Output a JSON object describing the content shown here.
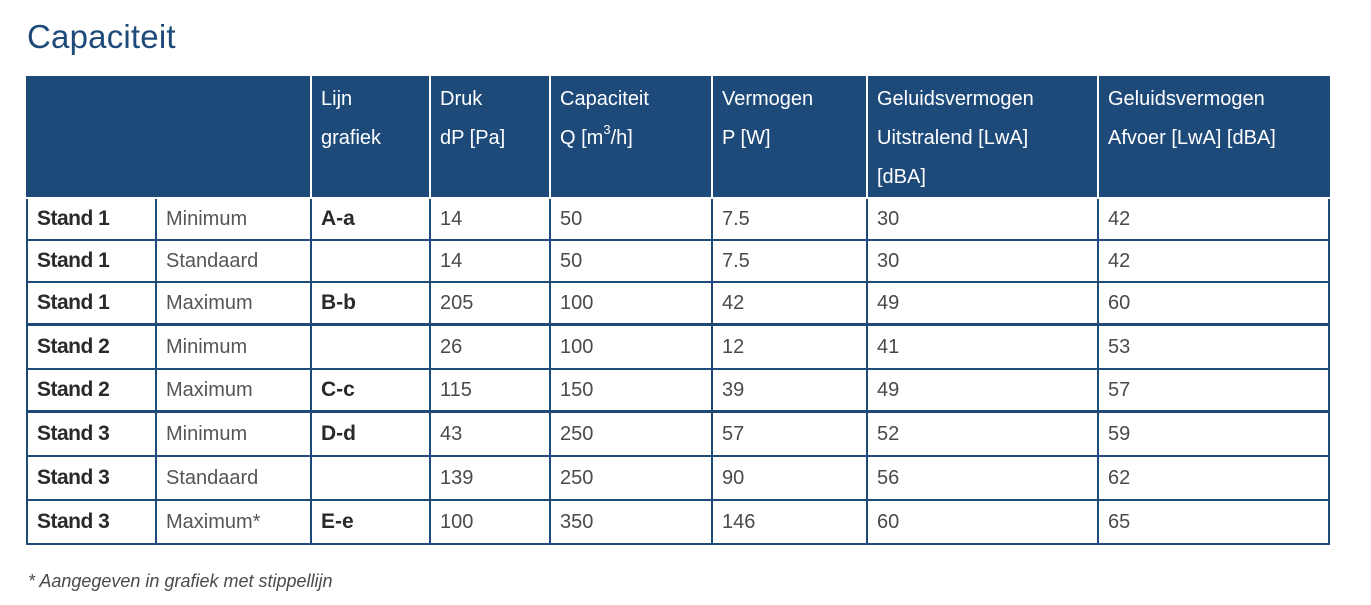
{
  "title": "Capaciteit",
  "header": {
    "lijn_grafiek": [
      "Lijn",
      "grafiek"
    ],
    "druk": [
      "Druk",
      "dP [Pa]"
    ],
    "capaciteit": [
      "Capaciteit",
      "Q [m",
      "3",
      "/h]"
    ],
    "vermogen": [
      "Vermogen",
      "P [W]"
    ],
    "geluid_uitstralend": [
      "Geluidsvermogen",
      "Uitstralend [LwA]",
      "[dBA]"
    ],
    "geluid_afvoer": [
      "Geluidsvermogen",
      "Afvoer [LwA] [dBA]"
    ]
  },
  "rows": [
    {
      "stand": "Stand 1",
      "mode": "Minimum",
      "line": "A-a",
      "druk": "14",
      "capaciteit": "50",
      "vermogen": "7.5",
      "uitstralend": "30",
      "afvoer": "42"
    },
    {
      "stand": "Stand 1",
      "mode": "Standaard",
      "line": "",
      "druk": "14",
      "capaciteit": "50",
      "vermogen": "7.5",
      "uitstralend": "30",
      "afvoer": "42"
    },
    {
      "stand": "Stand 1",
      "mode": "Maximum",
      "line": "B-b",
      "druk": "205",
      "capaciteit": "100",
      "vermogen": "42",
      "uitstralend": "49",
      "afvoer": "60"
    },
    {
      "stand": "Stand 2",
      "mode": "Minimum",
      "line": "",
      "druk": "26",
      "capaciteit": "100",
      "vermogen": "12",
      "uitstralend": "41",
      "afvoer": "53"
    },
    {
      "stand": "Stand 2",
      "mode": "Maximum",
      "line": "C-c",
      "druk": "115",
      "capaciteit": "150",
      "vermogen": "39",
      "uitstralend": "49",
      "afvoer": "57"
    },
    {
      "stand": "Stand 3",
      "mode": "Minimum",
      "line": "D-d",
      "druk": "43",
      "capaciteit": "250",
      "vermogen": "57",
      "uitstralend": "52",
      "afvoer": "59"
    },
    {
      "stand": "Stand 3",
      "mode": "Standaard",
      "line": "",
      "druk": "139",
      "capaciteit": "250",
      "vermogen": "90",
      "uitstralend": "56",
      "afvoer": "62"
    },
    {
      "stand": "Stand 3",
      "mode": "Maximum*",
      "line": "E-e",
      "druk": "100",
      "capaciteit": "350",
      "vermogen": "146",
      "uitstralend": "60",
      "afvoer": "65"
    }
  ],
  "footnote": "* Aangegeven in grafiek met stippellijn",
  "colors": {
    "header_bg": "#1e4a7a",
    "title": "#1e4a7a"
  }
}
